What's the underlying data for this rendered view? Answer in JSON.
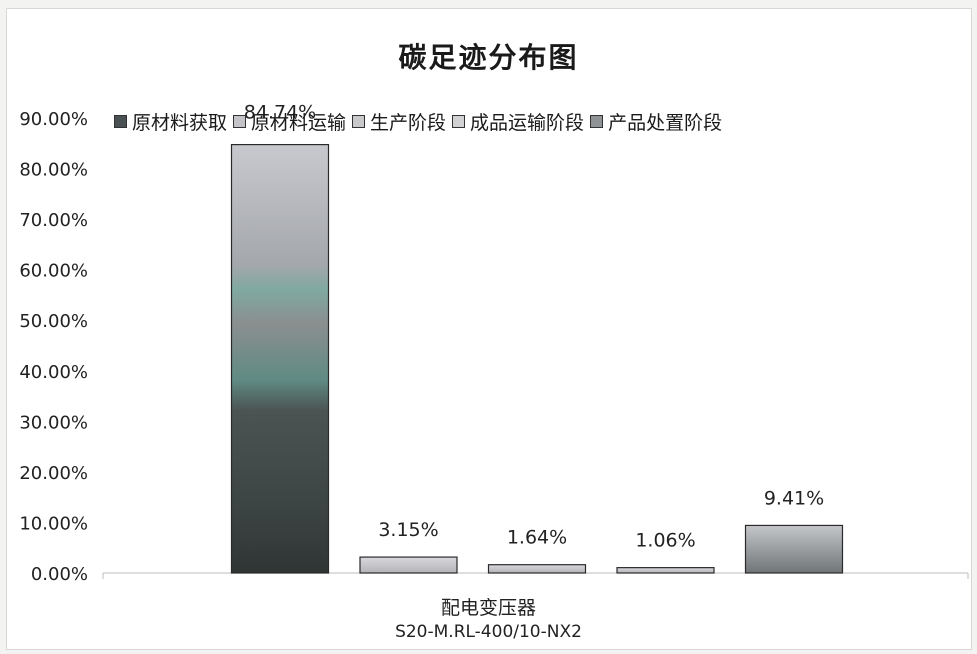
{
  "chart_data": {
    "type": "bar",
    "title": "碳足迹分布图",
    "categories": [
      "配电变压器",
      "S20-M.RL-400/10-NX2"
    ],
    "series": [
      {
        "name": "原材料获取",
        "value": 84.74,
        "label": "84.74%",
        "color": "#4a5152"
      },
      {
        "name": "原材料运输",
        "value": 3.15,
        "label": "3.15%",
        "color": "#c4c4c8"
      },
      {
        "name": "生产阶段",
        "value": 1.64,
        "label": "1.64%",
        "color": "#c9c9cc"
      },
      {
        "name": "成品运输阶段",
        "value": 1.06,
        "label": "1.06%",
        "color": "#d2d2d4"
      },
      {
        "name": "产品处置阶段",
        "value": 9.41,
        "label": "9.41%",
        "color": "#8f9395"
      }
    ],
    "ylim": [
      0,
      90
    ],
    "yticks": [
      "0.00%",
      "10.00%",
      "20.00%",
      "30.00%",
      "40.00%",
      "50.00%",
      "60.00%",
      "70.00%",
      "80.00%",
      "90.00%"
    ],
    "legend_position": "top",
    "grid": false
  }
}
